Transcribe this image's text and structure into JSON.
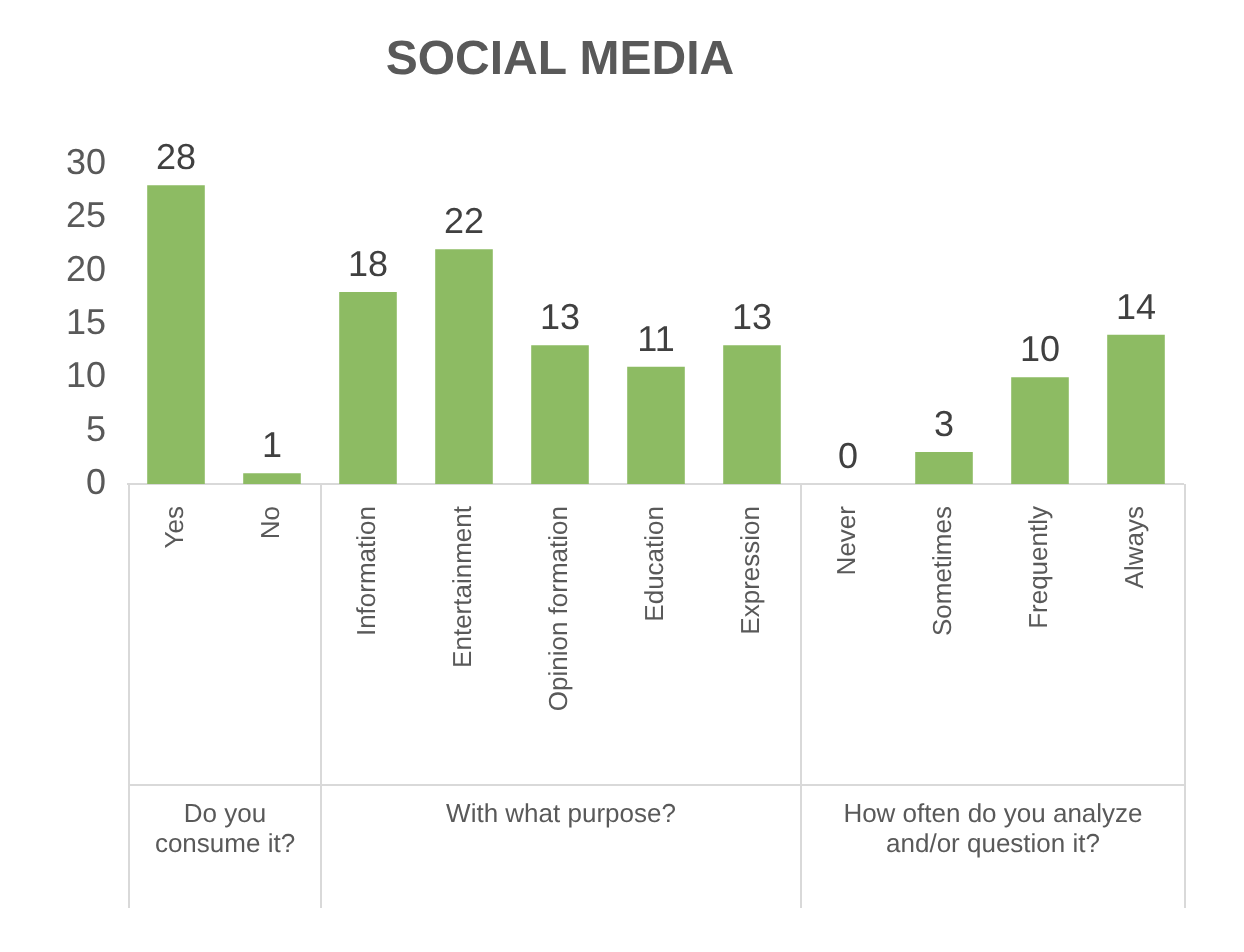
{
  "chart_data": [
    {
      "type": "bar",
      "xlabel": "Do you consume it?",
      "categories": [
        "Yes",
        "No"
      ],
      "values": [
        28,
        1
      ],
      "color": "#8dbb63",
      "ylim": [
        0,
        30
      ],
      "yticks": [
        0,
        5,
        10,
        15,
        20,
        25,
        30
      ],
      "grid": false,
      "legend": false,
      "data_labels": true
    },
    {
      "type": "bar",
      "title": "SOCIAL MEDIA",
      "xlabel": "With what purpose?",
      "categories": [
        "Information",
        "Entertainment",
        "Opinion formation",
        "Education",
        "Expression"
      ],
      "values": [
        18,
        22,
        13,
        11,
        13
      ],
      "color": "#8dbb63",
      "ylim": [
        0,
        30
      ],
      "yticks": [
        0,
        5,
        10,
        15,
        20,
        25,
        30
      ],
      "grid": false,
      "legend": false,
      "data_labels": true,
      "tick_labels": "x"
    },
    {
      "type": "bar",
      "xlabel": "How often do you analyze and/or question it?",
      "categories": [
        "Never",
        "Sometimes",
        "Frequently",
        "Always"
      ],
      "values": [
        0,
        3,
        10,
        14
      ],
      "color": "#8dbb63",
      "ylim": [
        0,
        30
      ],
      "yticks": [
        0,
        5,
        10,
        15,
        20,
        25,
        30
      ],
      "grid": false,
      "legend": false,
      "data_labels": true,
      "tick_labels": "x"
    }
  ]
}
